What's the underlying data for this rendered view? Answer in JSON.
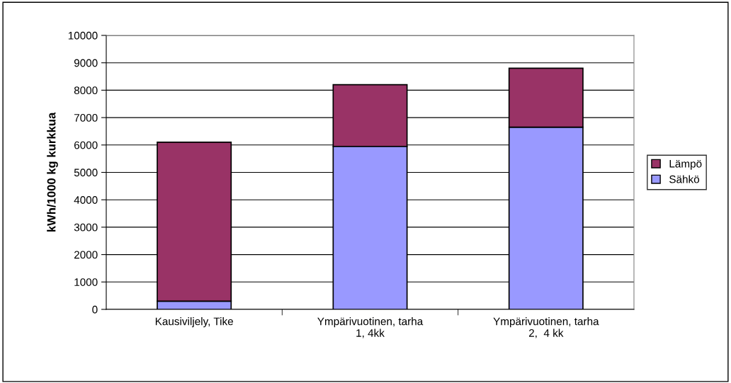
{
  "chart_data": {
    "type": "bar",
    "stacked": true,
    "ylabel": "kWh/1000 kg kurkkua",
    "categories": [
      "Kausiviljely, Tike",
      "Ympärivuotinen, tarha\n1, 4kk",
      "Ympärivuotinen, tarha\n2,  4 kk"
    ],
    "series": [
      {
        "name": "Sähkö",
        "color": "#9999ff",
        "values": [
          300,
          5950,
          6650
        ]
      },
      {
        "name": "Lämpö",
        "color": "#993366",
        "values": [
          5800,
          2250,
          2150
        ]
      }
    ],
    "ylim": [
      0,
      10000
    ],
    "yticks": [
      0,
      1000,
      2000,
      3000,
      4000,
      5000,
      6000,
      7000,
      8000,
      9000,
      10000
    ],
    "grid": "y",
    "legend": "right"
  }
}
